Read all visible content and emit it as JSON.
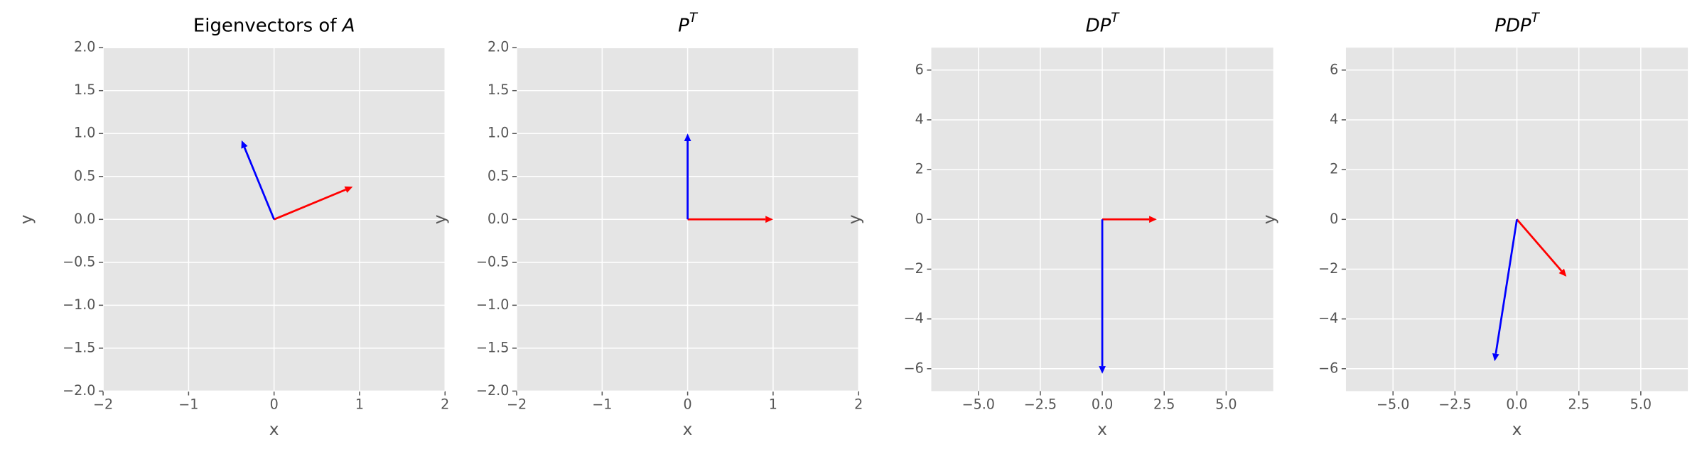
{
  "chart_data": [
    {
      "type": "quiver",
      "title": [
        {
          "text": "Eigenvectors of ",
          "style": "normal"
        },
        {
          "text": "A",
          "style": "italic"
        }
      ],
      "xlabel": "x",
      "ylabel": "y",
      "xlim": [
        -2,
        2
      ],
      "ylim": [
        -2,
        2
      ],
      "xticks": [
        {
          "value": -2,
          "label": "−2"
        },
        {
          "value": -1,
          "label": "−1"
        },
        0,
        1,
        2
      ],
      "yticks": [
        {
          "value": -2,
          "label": "−2.0"
        },
        {
          "value": -1.5,
          "label": "−1.5"
        },
        {
          "value": -1,
          "label": "−1.0"
        },
        {
          "value": -0.5,
          "label": "−0.5"
        },
        {
          "value": 0,
          "label": "0.0"
        },
        0.5,
        {
          "value": 1,
          "label": "1.0"
        },
        1.5,
        {
          "value": 2,
          "label": "2.0"
        }
      ],
      "grid": true,
      "series": [
        {
          "color": "red",
          "values": [
            0.92,
            0.38
          ]
        },
        {
          "color": "blue",
          "values": [
            -0.38,
            0.92
          ]
        }
      ]
    },
    {
      "type": "quiver",
      "title": [
        {
          "text": "P",
          "style": "italic"
        },
        {
          "text": "T",
          "style": "sup"
        }
      ],
      "xlabel": "x",
      "ylabel": "y",
      "xlim": [
        -2,
        2
      ],
      "ylim": [
        -2,
        2
      ],
      "xticks": [
        {
          "value": -2,
          "label": "−2"
        },
        {
          "value": -1,
          "label": "−1"
        },
        0,
        1,
        2
      ],
      "yticks": [
        {
          "value": -2,
          "label": "−2.0"
        },
        {
          "value": -1.5,
          "label": "−1.5"
        },
        {
          "value": -1,
          "label": "−1.0"
        },
        {
          "value": -0.5,
          "label": "−0.5"
        },
        {
          "value": 0,
          "label": "0.0"
        },
        0.5,
        {
          "value": 1,
          "label": "1.0"
        },
        1.5,
        {
          "value": 2,
          "label": "2.0"
        }
      ],
      "grid": true,
      "series": [
        {
          "color": "red",
          "values": [
            1,
            0
          ]
        },
        {
          "color": "blue",
          "values": [
            0,
            1
          ]
        }
      ]
    },
    {
      "type": "quiver",
      "title": [
        {
          "text": "DP",
          "style": "italic"
        },
        {
          "text": "T",
          "style": "sup"
        }
      ],
      "xlabel": "x",
      "ylabel": "y",
      "xlim": [
        -6.9,
        6.9
      ],
      "ylim": [
        -6.9,
        6.9
      ],
      "xticks": [
        {
          "value": -5,
          "label": "−5.0"
        },
        {
          "value": -2.5,
          "label": "−2.5"
        },
        {
          "value": 0,
          "label": "0.0"
        },
        2.5,
        {
          "value": 5,
          "label": "5.0"
        }
      ],
      "yticks": [
        {
          "value": -6,
          "label": "−6"
        },
        {
          "value": -4,
          "label": "−4"
        },
        {
          "value": -2,
          "label": "−2"
        },
        0,
        2,
        4,
        6
      ],
      "grid": true,
      "series": [
        {
          "color": "red",
          "values": [
            2.2,
            0
          ]
        },
        {
          "color": "blue",
          "values": [
            0,
            -6.2
          ]
        }
      ]
    },
    {
      "type": "quiver",
      "title": [
        {
          "text": "PDP",
          "style": "italic"
        },
        {
          "text": "T",
          "style": "sup"
        }
      ],
      "xlabel": "x",
      "ylabel": "y",
      "xlim": [
        -6.9,
        6.9
      ],
      "ylim": [
        -6.9,
        6.9
      ],
      "xticks": [
        {
          "value": -5,
          "label": "−5.0"
        },
        {
          "value": -2.5,
          "label": "−2.5"
        },
        {
          "value": 0,
          "label": "0.0"
        },
        2.5,
        {
          "value": 5,
          "label": "5.0"
        }
      ],
      "yticks": [
        {
          "value": -6,
          "label": "−6"
        },
        {
          "value": -4,
          "label": "−4"
        },
        {
          "value": -2,
          "label": "−2"
        },
        0,
        2,
        4,
        6
      ],
      "grid": true,
      "series": [
        {
          "color": "red",
          "values": [
            2.0,
            -2.3
          ]
        },
        {
          "color": "blue",
          "values": [
            -0.9,
            -5.7
          ]
        }
      ]
    }
  ]
}
